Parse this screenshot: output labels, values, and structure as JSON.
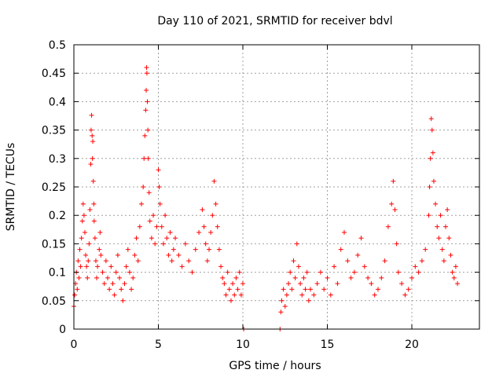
{
  "chart_data": {
    "type": "scatter",
    "title": "Day 110 of 2021, SRMTID for receiver bdvl",
    "xlabel": "GPS time / hours",
    "ylabel": "SRMTID / TECUs",
    "xlim": [
      0,
      24
    ],
    "ylim": [
      0,
      0.5
    ],
    "x_ticks": [
      0,
      5,
      10,
      15,
      20
    ],
    "x_tick_labels": [
      "0",
      "5",
      "10",
      "15",
      "20"
    ],
    "y_ticks": [
      0,
      0.05,
      0.1,
      0.15,
      0.2,
      0.25,
      0.3,
      0.35,
      0.4,
      0.45,
      0.5
    ],
    "y_tick_labels": [
      "0",
      "0.05",
      "0.1",
      "0.15",
      "0.2",
      "0.25",
      "0.3",
      "0.35",
      "0.4",
      "0.45",
      "0.5"
    ],
    "grid": true,
    "marker": "+",
    "color": "#ff0000",
    "series": [
      {
        "name": "SRMTID",
        "x": [
          0.0,
          0.05,
          0.1,
          0.15,
          0.2,
          0.25,
          0.3,
          0.35,
          0.4,
          0.45,
          0.5,
          0.55,
          0.6,
          0.65,
          0.7,
          0.75,
          0.8,
          0.85,
          0.9,
          0.95,
          1.0,
          1.02,
          1.05,
          1.08,
          1.1,
          1.12,
          1.15,
          1.18,
          1.2,
          1.25,
          1.3,
          1.35,
          1.4,
          1.5,
          1.55,
          1.6,
          1.7,
          1.8,
          1.9,
          2.0,
          2.1,
          2.2,
          2.3,
          2.4,
          2.5,
          2.6,
          2.7,
          2.8,
          2.9,
          3.0,
          3.1,
          3.2,
          3.3,
          3.4,
          3.5,
          3.6,
          3.7,
          3.8,
          3.9,
          4.0,
          4.1,
          4.15,
          4.2,
          4.25,
          4.28,
          4.3,
          4.32,
          4.35,
          4.38,
          4.4,
          4.45,
          4.5,
          4.6,
          4.7,
          4.8,
          4.9,
          5.0,
          5.05,
          5.1,
          5.2,
          5.3,
          5.4,
          5.5,
          5.6,
          5.7,
          5.8,
          5.9,
          6.0,
          6.2,
          6.4,
          6.6,
          6.8,
          7.0,
          7.2,
          7.4,
          7.6,
          7.7,
          7.8,
          7.9,
          8.0,
          8.1,
          8.2,
          8.3,
          8.4,
          8.5,
          8.6,
          8.7,
          8.8,
          8.9,
          9.0,
          9.1,
          9.2,
          9.3,
          9.4,
          9.5,
          9.6,
          9.7,
          9.8,
          9.9,
          10.0,
          10.05,
          12.2,
          12.25,
          12.3,
          12.4,
          12.5,
          12.6,
          12.7,
          12.8,
          12.9,
          13.0,
          13.1,
          13.2,
          13.3,
          13.4,
          13.5,
          13.6,
          13.7,
          13.8,
          13.9,
          14.0,
          14.2,
          14.4,
          14.6,
          14.8,
          15.0,
          15.2,
          15.4,
          15.6,
          15.8,
          16.0,
          16.2,
          16.4,
          16.6,
          16.8,
          17.0,
          17.2,
          17.4,
          17.6,
          17.8,
          18.0,
          18.2,
          18.4,
          18.6,
          18.8,
          18.9,
          19.0,
          19.1,
          19.2,
          19.4,
          19.6,
          19.8,
          20.0,
          20.2,
          20.4,
          20.6,
          20.8,
          21.0,
          21.05,
          21.1,
          21.15,
          21.2,
          21.25,
          21.3,
          21.4,
          21.5,
          21.6,
          21.7,
          21.8,
          21.9,
          22.0,
          22.1,
          22.2,
          22.3,
          22.4,
          22.5,
          22.6,
          22.7
        ],
        "y": [
          0.04,
          0.06,
          0.08,
          0.1,
          0.07,
          0.12,
          0.09,
          0.14,
          0.11,
          0.16,
          0.19,
          0.22,
          0.2,
          0.17,
          0.13,
          0.11,
          0.09,
          0.12,
          0.15,
          0.21,
          0.29,
          0.35,
          0.376,
          0.34,
          0.3,
          0.33,
          0.26,
          0.22,
          0.19,
          0.16,
          0.12,
          0.09,
          0.11,
          0.14,
          0.17,
          0.13,
          0.1,
          0.08,
          0.12,
          0.09,
          0.07,
          0.11,
          0.08,
          0.06,
          0.1,
          0.13,
          0.09,
          0.07,
          0.05,
          0.08,
          0.11,
          0.14,
          0.1,
          0.07,
          0.09,
          0.13,
          0.16,
          0.12,
          0.18,
          0.22,
          0.25,
          0.3,
          0.34,
          0.385,
          0.42,
          0.46,
          0.45,
          0.4,
          0.35,
          0.3,
          0.24,
          0.19,
          0.16,
          0.2,
          0.15,
          0.18,
          0.28,
          0.25,
          0.22,
          0.18,
          0.15,
          0.2,
          0.16,
          0.13,
          0.17,
          0.12,
          0.14,
          0.16,
          0.13,
          0.11,
          0.15,
          0.12,
          0.1,
          0.14,
          0.17,
          0.21,
          0.18,
          0.15,
          0.12,
          0.14,
          0.17,
          0.2,
          0.26,
          0.22,
          0.18,
          0.14,
          0.11,
          0.09,
          0.08,
          0.06,
          0.1,
          0.07,
          0.05,
          0.08,
          0.06,
          0.09,
          0.07,
          0.1,
          0.06,
          0.08,
          0.0,
          0.0,
          0.03,
          0.05,
          0.07,
          0.04,
          0.06,
          0.08,
          0.1,
          0.07,
          0.12,
          0.09,
          0.15,
          0.11,
          0.08,
          0.06,
          0.09,
          0.07,
          0.1,
          0.05,
          0.07,
          0.06,
          0.08,
          0.1,
          0.07,
          0.09,
          0.06,
          0.11,
          0.08,
          0.14,
          0.17,
          0.12,
          0.09,
          0.1,
          0.13,
          0.16,
          0.11,
          0.09,
          0.08,
          0.06,
          0.07,
          0.09,
          0.12,
          0.18,
          0.22,
          0.26,
          0.21,
          0.15,
          0.1,
          0.08,
          0.06,
          0.07,
          0.09,
          0.11,
          0.1,
          0.12,
          0.14,
          0.2,
          0.25,
          0.3,
          0.37,
          0.35,
          0.31,
          0.26,
          0.22,
          0.18,
          0.16,
          0.2,
          0.14,
          0.12,
          0.18,
          0.21,
          0.16,
          0.13,
          0.1,
          0.09,
          0.11,
          0.08
        ]
      }
    ]
  }
}
